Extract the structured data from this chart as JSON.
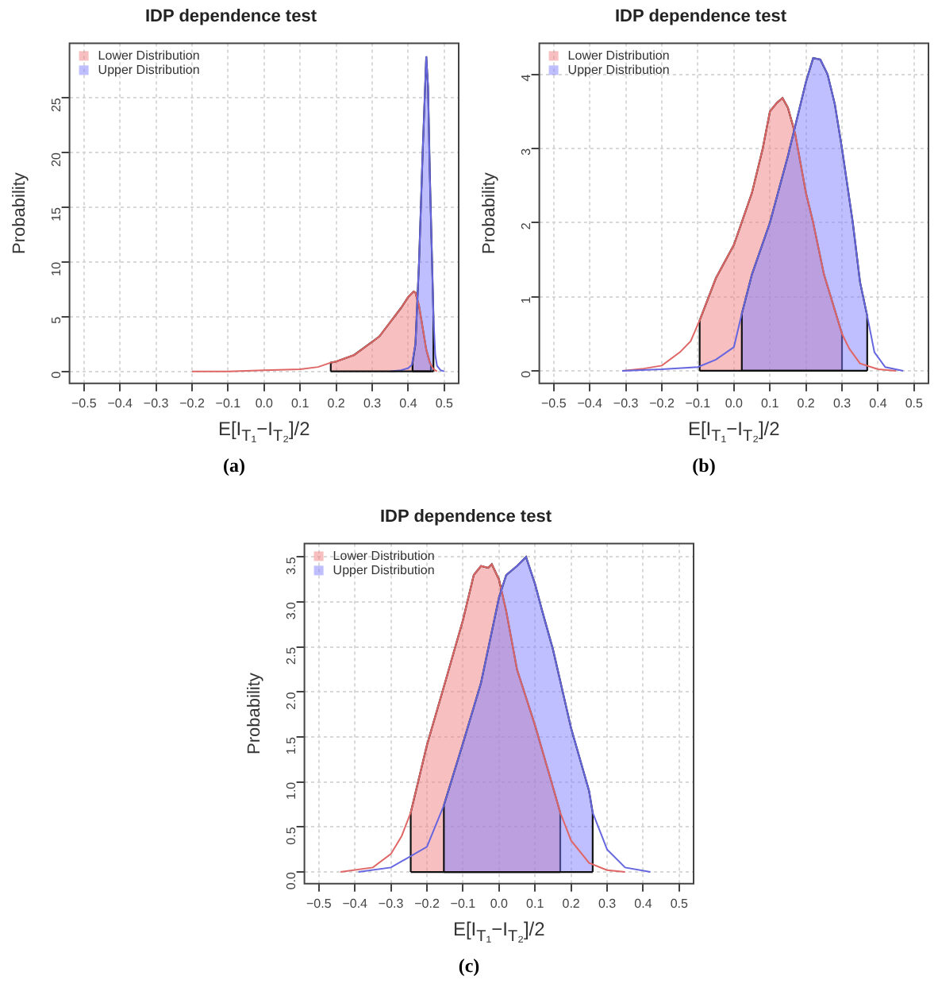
{
  "chart_data": [
    {
      "type": "line",
      "title": "IDP dependence test",
      "xlabel": "E[I$_{T₁}$−I$_{T₂}$]/2",
      "ylabel": "Probability",
      "annotations": [
        "(a)"
      ],
      "grid": true,
      "legend": "top left",
      "xlim": [
        -0.54,
        0.54
      ],
      "ylim": [
        -1.1,
        30
      ],
      "xticks": [
        {
          "value": -0.5,
          "label": "−0.5"
        },
        {
          "value": -0.4,
          "label": "−0.4"
        },
        {
          "value": -0.3,
          "label": "−0.3"
        },
        {
          "value": -0.2,
          "label": "−0.2"
        },
        {
          "value": -0.1,
          "label": "−0.1"
        },
        {
          "value": 0,
          "label": "0.0"
        },
        {
          "value": 0.1,
          "label": "0.1"
        },
        {
          "value": 0.2,
          "label": "0.2"
        },
        {
          "value": 0.3,
          "label": "0.3"
        },
        {
          "value": 0.4,
          "label": "0.4"
        },
        {
          "value": 0.5,
          "label": "0.5"
        }
      ],
      "yticks": [
        0,
        5,
        10,
        15,
        20,
        25
      ],
      "series": [
        {
          "color": "#e06666",
          "x": [
            -0.2,
            -0.1,
            0,
            0.1,
            0.15,
            0.185,
            0.2,
            0.25,
            0.3,
            0.32,
            0.35,
            0.38,
            0.4,
            0.415,
            0.42,
            0.43,
            0.44,
            0.45,
            0.46,
            0.47,
            0.48
          ],
          "values": [
            0,
            0,
            0.1,
            0.2,
            0.4,
            0.8,
            0.9,
            1.5,
            2.7,
            3.2,
            4.5,
            5.8,
            6.8,
            7.3,
            7.2,
            6,
            4,
            2,
            0.8,
            0.2,
            0
          ]
        },
        {
          "type": "area",
          "name": "Lower Distribution",
          "color": "#f08080",
          "x": [
            0.185,
            0.185,
            0.2,
            0.25,
            0.3,
            0.32,
            0.35,
            0.38,
            0.4,
            0.415,
            0.42,
            0.43,
            0.44,
            0.45,
            0.46,
            0.463,
            0.463
          ],
          "values": [
            0,
            0.8,
            0.9,
            1.5,
            2.7,
            3.2,
            4.5,
            5.8,
            6.8,
            7.3,
            7.2,
            6,
            4,
            2,
            0.8,
            0.6,
            0
          ]
        },
        {
          "color": "#6666e0",
          "x": [
            0.35,
            0.38,
            0.4,
            0.41,
            0.42,
            0.43,
            0.44,
            0.45,
            0.455,
            0.46,
            0.47,
            0.475,
            0.48,
            0.49,
            0.5
          ],
          "values": [
            0,
            0.1,
            0.3,
            0.6,
            2.5,
            10,
            20,
            28.8,
            26,
            18,
            5,
            1.5,
            0.5,
            0.1,
            0
          ]
        },
        {
          "type": "area",
          "name": "Upper Distribution",
          "color": "#8080ff",
          "x": [
            0.412,
            0.412,
            0.42,
            0.43,
            0.44,
            0.45,
            0.455,
            0.46,
            0.47,
            0.47
          ],
          "values": [
            0,
            0.8,
            2.5,
            10,
            20,
            28.8,
            26,
            18,
            5,
            0
          ]
        }
      ]
    },
    {
      "type": "line",
      "title": "IDP dependence test",
      "xlabel": "E[I$_{T₁}$−I$_{T₂}$]/2",
      "ylabel": "Probability",
      "annotations": [
        "(b)"
      ],
      "grid": true,
      "legend": "top left",
      "xlim": [
        -0.54,
        0.54
      ],
      "ylim": [
        -0.17,
        4.42
      ],
      "xticks": [
        {
          "value": -0.5,
          "label": "−0.5"
        },
        {
          "value": -0.4,
          "label": "−0.4"
        },
        {
          "value": -0.3,
          "label": "−0.3"
        },
        {
          "value": -0.2,
          "label": "−0.2"
        },
        {
          "value": -0.1,
          "label": "−0.1"
        },
        {
          "value": 0,
          "label": "0.0"
        },
        {
          "value": 0.1,
          "label": "0.1"
        },
        {
          "value": 0.2,
          "label": "0.2"
        },
        {
          "value": 0.3,
          "label": "0.3"
        },
        {
          "value": 0.4,
          "label": "0.4"
        },
        {
          "value": 0.5,
          "label": "0.5"
        }
      ],
      "yticks": [
        0,
        1,
        2,
        3,
        4
      ],
      "series": [
        {
          "color": "#e06666",
          "x": [
            -0.31,
            -0.25,
            -0.2,
            -0.15,
            -0.12,
            -0.095,
            -0.05,
            0,
            0.05,
            0.08,
            0.1,
            0.12,
            0.135,
            0.15,
            0.17,
            0.2,
            0.22,
            0.25,
            0.3,
            0.32,
            0.35,
            0.4,
            0.45
          ],
          "values": [
            0,
            0.03,
            0.07,
            0.25,
            0.4,
            0.68,
            1.25,
            1.7,
            2.4,
            3.0,
            3.5,
            3.62,
            3.68,
            3.55,
            3.2,
            2.4,
            2.0,
            1.3,
            0.5,
            0.3,
            0.1,
            0.02,
            0
          ]
        },
        {
          "type": "area",
          "name": "Lower Distribution",
          "color": "#f08080",
          "x": [
            -0.095,
            -0.095,
            -0.05,
            0,
            0.05,
            0.08,
            0.1,
            0.12,
            0.135,
            0.15,
            0.17,
            0.2,
            0.22,
            0.25,
            0.3,
            0.3
          ],
          "values": [
            0,
            0.68,
            1.25,
            1.7,
            2.4,
            3.0,
            3.5,
            3.62,
            3.68,
            3.55,
            3.2,
            2.4,
            2.0,
            1.3,
            0.5,
            0
          ]
        },
        {
          "color": "#6666e0",
          "x": [
            -0.31,
            -0.2,
            -0.1,
            -0.05,
            0,
            0.022,
            0.05,
            0.1,
            0.15,
            0.17,
            0.2,
            0.22,
            0.24,
            0.26,
            0.28,
            0.3,
            0.33,
            0.35,
            0.37,
            0.39,
            0.42,
            0.47
          ],
          "values": [
            0,
            0.02,
            0.05,
            0.15,
            0.32,
            0.77,
            1.3,
            2.0,
            2.9,
            3.3,
            3.9,
            4.22,
            4.2,
            4.0,
            3.6,
            3.0,
            2.0,
            1.2,
            0.74,
            0.25,
            0.05,
            0
          ]
        },
        {
          "type": "area",
          "name": "Upper Distribution",
          "color": "#8080ff",
          "x": [
            0.022,
            0.022,
            0.05,
            0.1,
            0.15,
            0.17,
            0.2,
            0.22,
            0.24,
            0.26,
            0.28,
            0.3,
            0.33,
            0.35,
            0.37,
            0.37
          ],
          "values": [
            0,
            0.77,
            1.3,
            2.0,
            2.9,
            3.3,
            3.9,
            4.22,
            4.2,
            4.0,
            3.6,
            3.0,
            2.0,
            1.2,
            0.74,
            0
          ]
        }
      ]
    },
    {
      "type": "line",
      "title": "IDP dependence test",
      "xlabel": "E[I$_{T₁}$−I$_{T₂}$]/2",
      "ylabel": "Probability",
      "annotations": [
        "(c)"
      ],
      "grid": true,
      "legend": "top left",
      "xlim": [
        -0.54,
        0.54
      ],
      "ylim": [
        -0.13,
        3.65
      ],
      "xticks": [
        {
          "value": -0.5,
          "label": "−0.5"
        },
        {
          "value": -0.4,
          "label": "−0.4"
        },
        {
          "value": -0.3,
          "label": "−0.3"
        },
        {
          "value": -0.2,
          "label": "−0.2"
        },
        {
          "value": -0.1,
          "label": "−0.1"
        },
        {
          "value": 0,
          "label": "0.0"
        },
        {
          "value": 0.1,
          "label": "0.1"
        },
        {
          "value": 0.2,
          "label": "0.2"
        },
        {
          "value": 0.3,
          "label": "0.3"
        },
        {
          "value": 0.4,
          "label": "0.4"
        },
        {
          "value": 0.5,
          "label": "0.5"
        }
      ],
      "yticks": [
        {
          "value": 0,
          "label": "0.0"
        },
        {
          "value": 0.5,
          "label": "0.5"
        },
        {
          "value": 1,
          "label": "1.0"
        },
        {
          "value": 1.5,
          "label": "1.5"
        },
        {
          "value": 2,
          "label": "2.0"
        },
        {
          "value": 2.5,
          "label": "2.5"
        },
        {
          "value": 3,
          "label": "3.0"
        },
        {
          "value": 3.5,
          "label": "3.5"
        }
      ],
      "series": [
        {
          "color": "#e06666",
          "x": [
            -0.44,
            -0.35,
            -0.3,
            -0.27,
            -0.245,
            -0.2,
            -0.15,
            -0.1,
            -0.07,
            -0.05,
            -0.03,
            -0.02,
            0,
            0.02,
            0.05,
            0.1,
            0.15,
            0.17,
            0.2,
            0.25,
            0.3,
            0.35
          ],
          "values": [
            0,
            0.05,
            0.2,
            0.4,
            0.66,
            1.41,
            2.1,
            2.8,
            3.3,
            3.4,
            3.38,
            3.42,
            3.25,
            2.9,
            2.25,
            1.63,
            0.94,
            0.66,
            0.35,
            0.1,
            0.02,
            0
          ]
        },
        {
          "type": "area",
          "name": "Lower Distribution",
          "color": "#f08080",
          "x": [
            -0.245,
            -0.245,
            -0.2,
            -0.15,
            -0.1,
            -0.07,
            -0.05,
            -0.03,
            -0.02,
            0,
            0.02,
            0.05,
            0.1,
            0.15,
            0.17,
            0.17
          ],
          "values": [
            0,
            0.66,
            1.41,
            2.1,
            2.8,
            3.3,
            3.4,
            3.38,
            3.42,
            3.25,
            2.9,
            2.25,
            1.63,
            0.94,
            0.66,
            0
          ]
        },
        {
          "color": "#6666e0",
          "x": [
            -0.39,
            -0.3,
            -0.2,
            -0.153,
            -0.1,
            -0.05,
            0,
            0.02,
            0.05,
            0.075,
            0.1,
            0.12,
            0.15,
            0.2,
            0.25,
            0.26,
            0.3,
            0.35,
            0.42
          ],
          "values": [
            0,
            0.05,
            0.28,
            0.74,
            1.43,
            2.1,
            3.05,
            3.3,
            3.4,
            3.5,
            3.2,
            2.9,
            2.47,
            1.6,
            0.9,
            0.66,
            0.25,
            0.05,
            0
          ]
        },
        {
          "type": "area",
          "name": "Upper Distribution",
          "color": "#8080ff",
          "x": [
            -0.153,
            -0.153,
            -0.1,
            -0.05,
            0,
            0.02,
            0.05,
            0.075,
            0.1,
            0.12,
            0.15,
            0.2,
            0.25,
            0.26,
            0.26
          ],
          "values": [
            0,
            0.74,
            1.43,
            2.1,
            3.05,
            3.3,
            3.4,
            3.5,
            3.2,
            2.9,
            2.47,
            1.6,
            0.9,
            0.66,
            0
          ]
        }
      ]
    }
  ]
}
